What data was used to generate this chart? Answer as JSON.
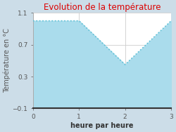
{
  "x": [
    0,
    1,
    2,
    3
  ],
  "y": [
    1.0,
    1.0,
    0.45,
    1.0
  ],
  "title": "Evolution de la température",
  "title_color": "#dd0000",
  "xlabel": "heure par heure",
  "ylabel": "Température en °C",
  "ylim": [
    -0.1,
    1.1
  ],
  "xlim": [
    0,
    3
  ],
  "yticks": [
    -0.1,
    0.3,
    0.7,
    1.1
  ],
  "xticks": [
    0,
    1,
    2,
    3
  ],
  "line_color": "#5bbfd4",
  "fill_color": "#aadcec",
  "fill_alpha": 1.0,
  "figure_bg_color": "#ccdde8",
  "plot_bg_color": "#ffffff",
  "grid_color": "#cccccc",
  "line_style": "dotted",
  "line_width": 1.2,
  "title_fontsize": 8.5,
  "label_fontsize": 7,
  "tick_fontsize": 6.5
}
